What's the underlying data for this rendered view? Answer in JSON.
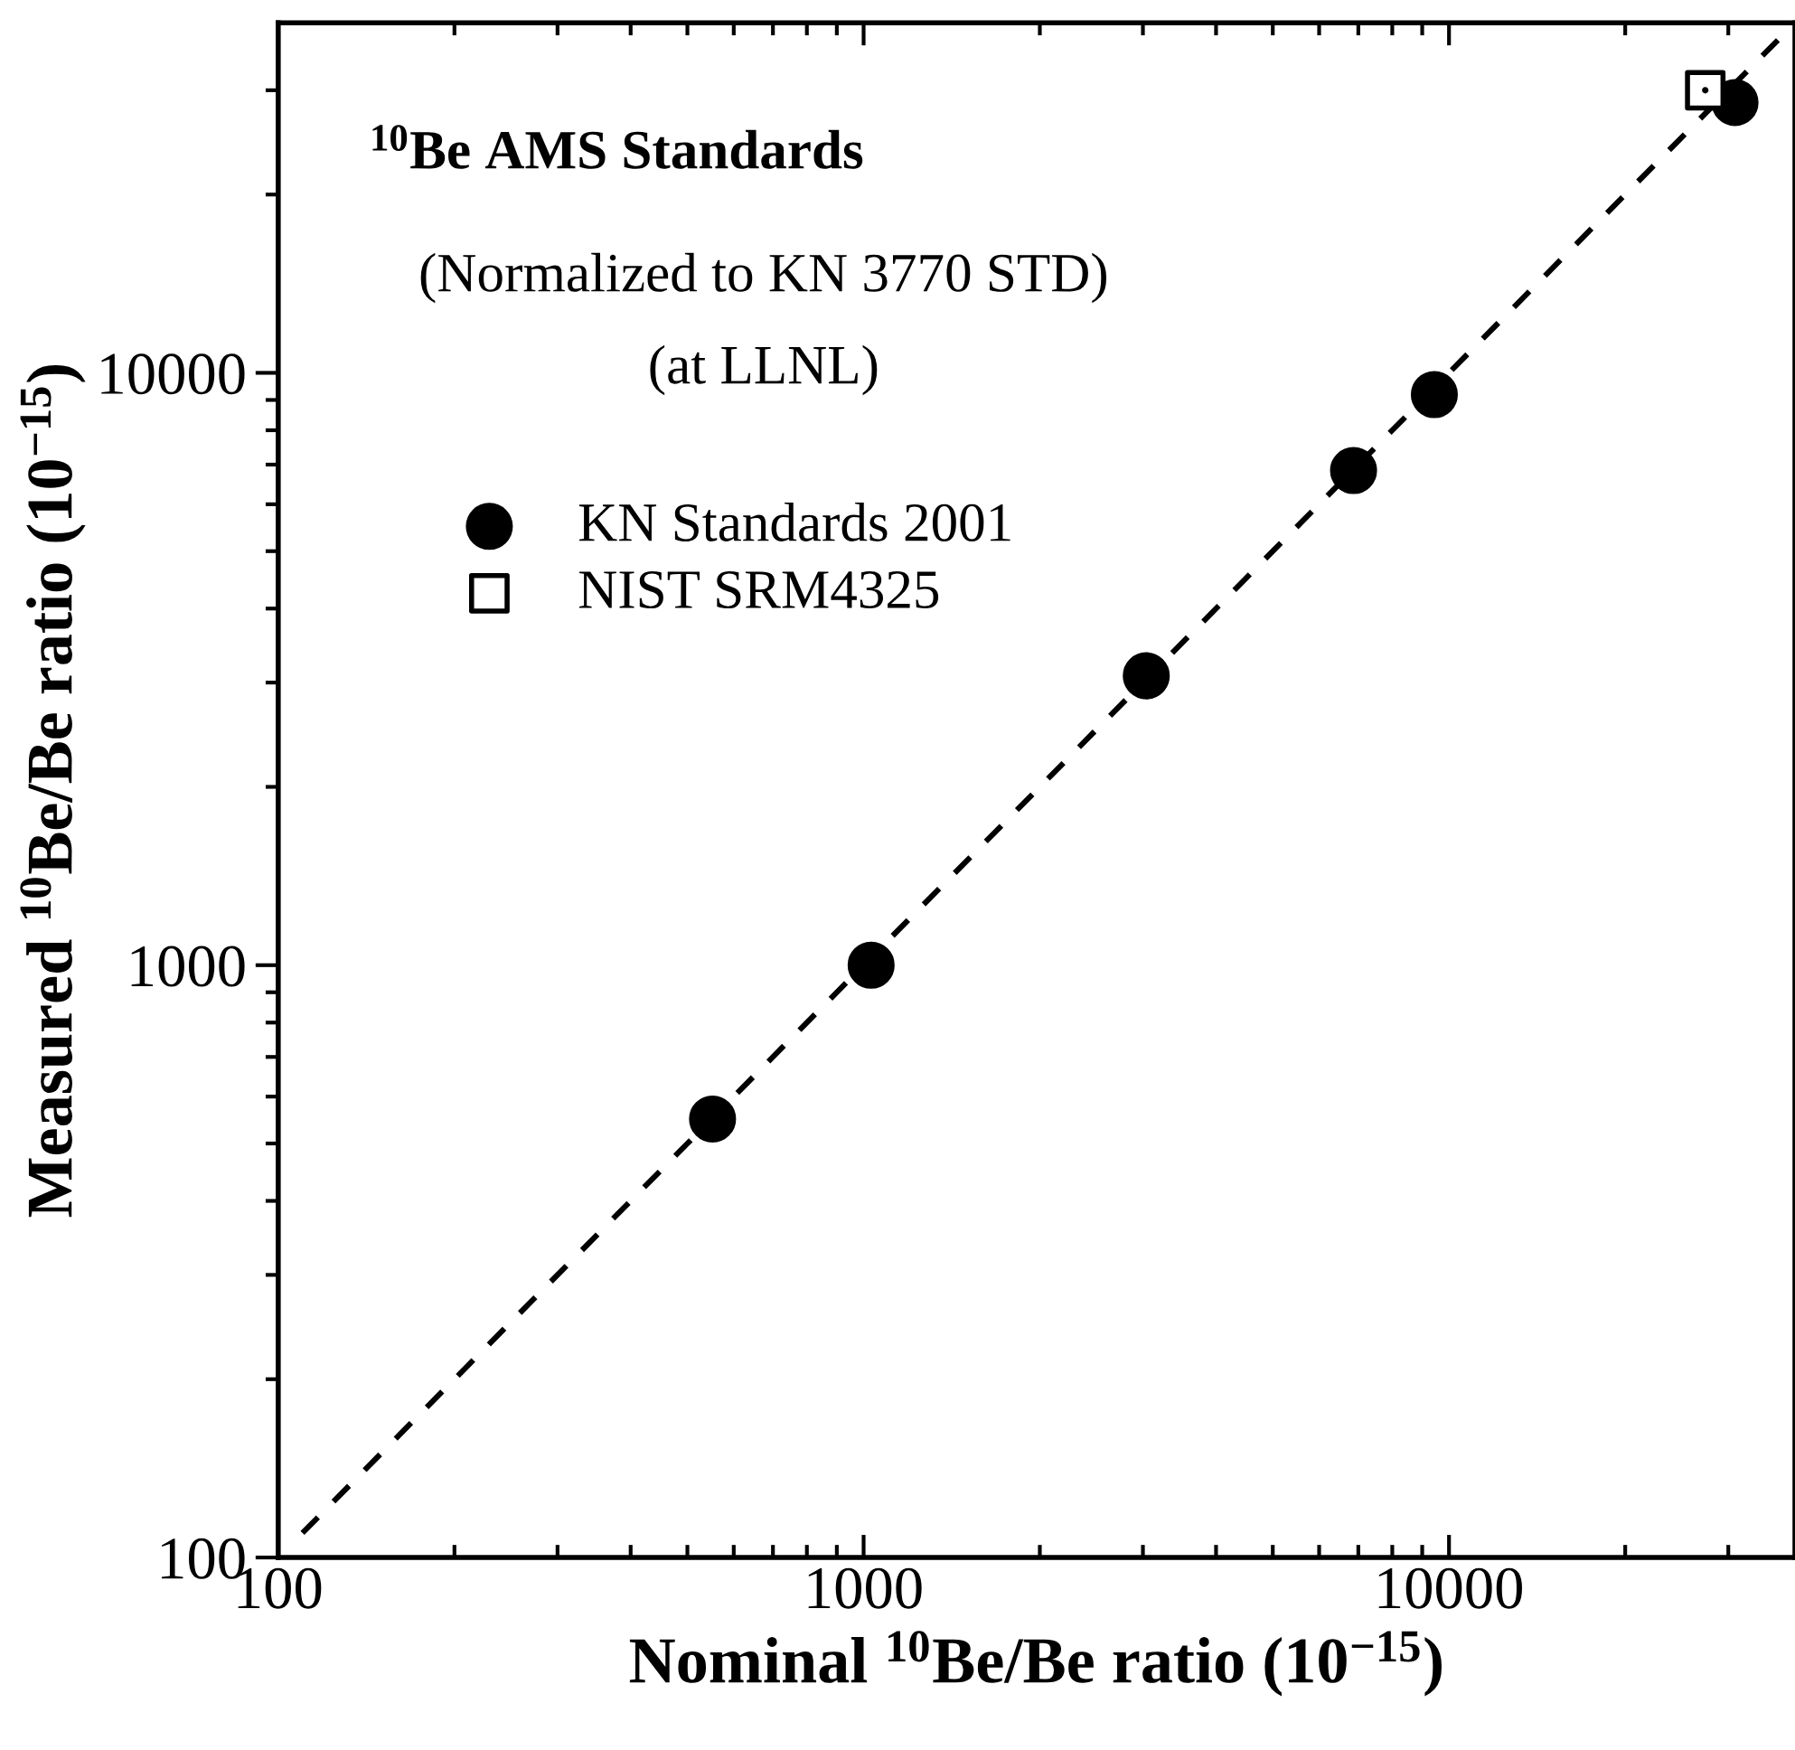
{
  "chart_data": {
    "type": "scatter",
    "title": "$^{10}$Be AMS Standards",
    "subtitle": "(Normalized to KN 3770 STD)",
    "annotations": [
      "(at LLNL)"
    ],
    "xlabel": "Nominal $^{10}$Be/Be ratio (10$^{−15}$)",
    "ylabel": "Measured $^{10}$Be/Be ratio (10$^{−15}$)",
    "log": "xy",
    "xlim": [
      100,
      39000
    ],
    "ylim": [
      100,
      39000
    ],
    "xticks": [
      100,
      1000,
      10000
    ],
    "yticks": [
      100,
      1000,
      10000
    ],
    "grid": false,
    "legend": "top left",
    "series": [
      {
        "name": "KN Standards 2001",
        "color": "#000000",
        "marker": "circle",
        "x": [
          552,
          1030,
          3040,
          6870,
          9440,
          30800
        ],
        "values": [
          550,
          1000,
          3080,
          6840,
          9190,
          28600
        ]
      },
      {
        "name": "NIST SRM4325",
        "color": "#000000",
        "marker": "square",
        "x": [
          27400
        ],
        "values": [
          30000
        ]
      },
      {
        "type": "line",
        "color": "#000000",
        "line_style": "dashed",
        "marker": "none",
        "x": [
          110,
          39000
        ],
        "values": [
          110,
          39000
        ]
      }
    ]
  }
}
